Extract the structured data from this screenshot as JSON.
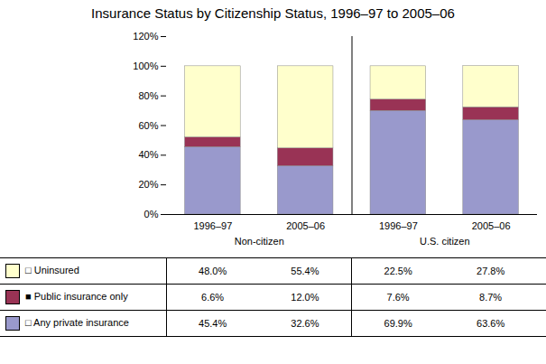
{
  "chart_data": {
    "type": "bar",
    "stacked": true,
    "grid": false,
    "title": "Insurance Status by Citizenship Status, 1996–97 to 2005–06",
    "categories": [
      "1996–97",
      "2005–06",
      "1996–97",
      "2005–06"
    ],
    "group_labels": [
      "Non-citizen",
      "U.S. citizen"
    ],
    "series": [
      {
        "name": "□ Any private insurance",
        "color": "#9999cc",
        "values": [
          45.4,
          32.6,
          69.9,
          63.6
        ],
        "value_labels": [
          "45.4%",
          "32.6%",
          "69.9%",
          "63.6%"
        ]
      },
      {
        "name": "■ Public insurance only",
        "color": "#993355",
        "values": [
          6.6,
          12.0,
          7.6,
          8.7
        ],
        "value_labels": [
          "6.6%",
          "12.0%",
          "7.6%",
          "8.7%"
        ]
      },
      {
        "name": "□ Uninsured",
        "color": "#ffffcc",
        "values": [
          48.0,
          55.4,
          22.5,
          27.8
        ],
        "value_labels": [
          "48.0%",
          "55.4%",
          "22.5%",
          "27.8%"
        ]
      }
    ],
    "ylim": [
      0,
      120
    ],
    "yticks": [
      {
        "value": 0,
        "label": "0%"
      },
      {
        "value": 20,
        "label": "20%"
      },
      {
        "value": 40,
        "label": "40%"
      },
      {
        "value": 60,
        "label": "60%"
      },
      {
        "value": 80,
        "label": "80%"
      },
      {
        "value": 100,
        "label": "100%"
      },
      {
        "value": 120,
        "label": "120%"
      }
    ]
  }
}
